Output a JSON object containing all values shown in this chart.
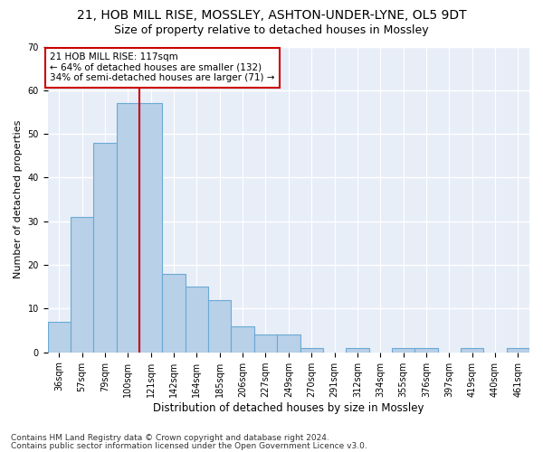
{
  "title1": "21, HOB MILL RISE, MOSSLEY, ASHTON-UNDER-LYNE, OL5 9DT",
  "title2": "Size of property relative to detached houses in Mossley",
  "xlabel": "Distribution of detached houses by size in Mossley",
  "ylabel": "Number of detached properties",
  "categories": [
    "36sqm",
    "57sqm",
    "79sqm",
    "100sqm",
    "121sqm",
    "142sqm",
    "164sqm",
    "185sqm",
    "206sqm",
    "227sqm",
    "249sqm",
    "270sqm",
    "291sqm",
    "312sqm",
    "334sqm",
    "355sqm",
    "376sqm",
    "397sqm",
    "419sqm",
    "440sqm",
    "461sqm"
  ],
  "values": [
    7,
    31,
    48,
    57,
    57,
    18,
    15,
    12,
    6,
    4,
    4,
    1,
    0,
    1,
    0,
    1,
    1,
    0,
    1,
    0,
    1
  ],
  "bar_color": "#b8d0e8",
  "bar_edge_color": "#6aaad4",
  "vline_color": "#cc0000",
  "annotation_text": "21 HOB MILL RISE: 117sqm\n← 64% of detached houses are smaller (132)\n34% of semi-detached houses are larger (71) →",
  "annotation_box_color": "#cc0000",
  "ylim": [
    0,
    70
  ],
  "yticks": [
    0,
    10,
    20,
    30,
    40,
    50,
    60,
    70
  ],
  "footer1": "Contains HM Land Registry data © Crown copyright and database right 2024.",
  "footer2": "Contains public sector information licensed under the Open Government Licence v3.0.",
  "bg_color": "#e8eef8",
  "grid_color": "#ffffff",
  "title1_fontsize": 10,
  "title2_fontsize": 9,
  "xlabel_fontsize": 8.5,
  "ylabel_fontsize": 8,
  "tick_fontsize": 7,
  "annotation_fontsize": 7.5,
  "footer_fontsize": 6.5
}
